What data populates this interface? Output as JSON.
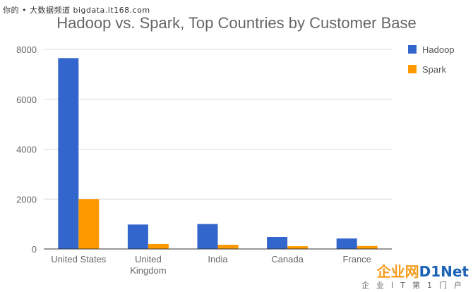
{
  "watermark_top": "你的 • 大数据频道 bigdata.it168.com",
  "logo": {
    "main": "企业网",
    "brand": "D1Net",
    "sub": "企业IT第1门户"
  },
  "colors": {
    "hadoop": "#3366cc",
    "spark": "#ff9900",
    "grid": "#d9d9d9",
    "axis": "#333333"
  },
  "chart_data": {
    "type": "bar",
    "title": "Hadoop vs. Spark, Top Countries by Customer Base",
    "categories": [
      [
        "United States"
      ],
      [
        "United",
        "Kingdom"
      ],
      [
        "India"
      ],
      [
        "Canada"
      ],
      [
        "France"
      ]
    ],
    "series": [
      {
        "name": "Hadoop",
        "values": [
          7650,
          980,
          1000,
          480,
          420
        ]
      },
      {
        "name": "Spark",
        "values": [
          2000,
          200,
          170,
          110,
          120
        ]
      }
    ],
    "ylim": [
      0,
      8000
    ],
    "yticks": [
      0,
      2000,
      4000,
      6000,
      8000
    ],
    "grid": true,
    "legend": "top-right",
    "xlabel": "",
    "ylabel": ""
  }
}
